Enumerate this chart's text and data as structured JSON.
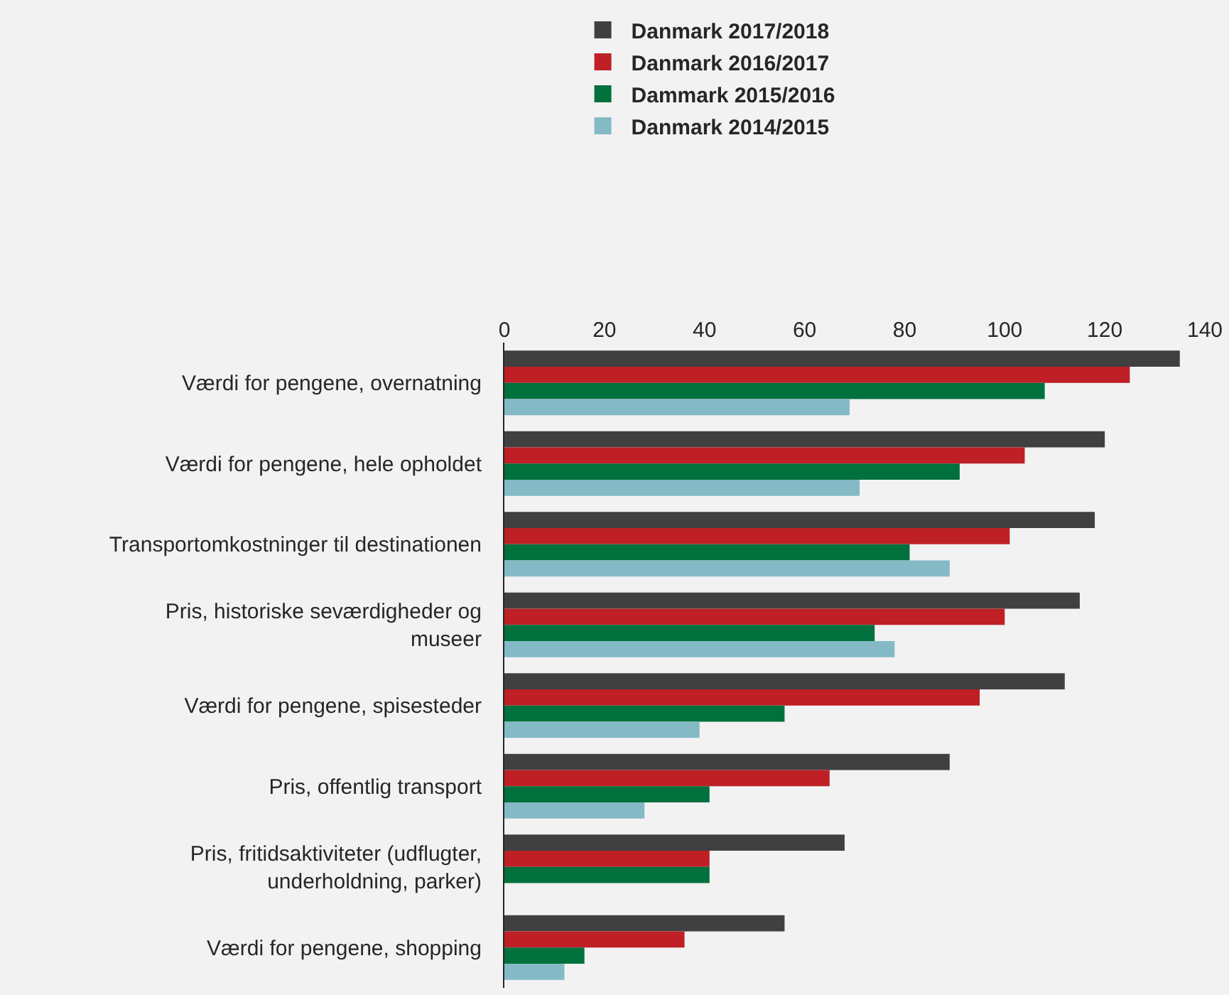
{
  "chart_data": {
    "type": "bar",
    "orientation": "horizontal",
    "categories": [
      "Værdi for pengene, overnatning",
      "Værdi for pengene, hele opholdet",
      "Transportomkostninger til destinationen",
      "Pris, historiske seværdigheder og museer",
      "Værdi for pengene, spisesteder",
      "Pris, offentlig transport",
      "Pris, fritidsaktiviteter (udflugter, underholdning, parker)",
      "Værdi for pengene, shopping"
    ],
    "series": [
      {
        "name": "Danmark 2017/2018",
        "color": "#404040",
        "values": [
          135,
          120,
          118,
          115,
          112,
          89,
          68,
          56
        ]
      },
      {
        "name": "Danmark 2016/2017",
        "color": "#be2026",
        "values": [
          125,
          104,
          101,
          100,
          95,
          65,
          41,
          36
        ]
      },
      {
        "name": "Dammark 2015/2016",
        "color": "#00703c",
        "values": [
          108,
          91,
          81,
          74,
          56,
          41,
          41,
          16
        ]
      },
      {
        "name": "Danmark 2014/2015",
        "color": "#84bac6",
        "values": [
          69,
          71,
          89,
          78,
          39,
          28,
          null,
          12
        ]
      }
    ],
    "xlim": [
      0,
      140
    ],
    "xticks": [
      0,
      20,
      40,
      60,
      80,
      100,
      120,
      140
    ],
    "grid": false,
    "legend": "top"
  }
}
